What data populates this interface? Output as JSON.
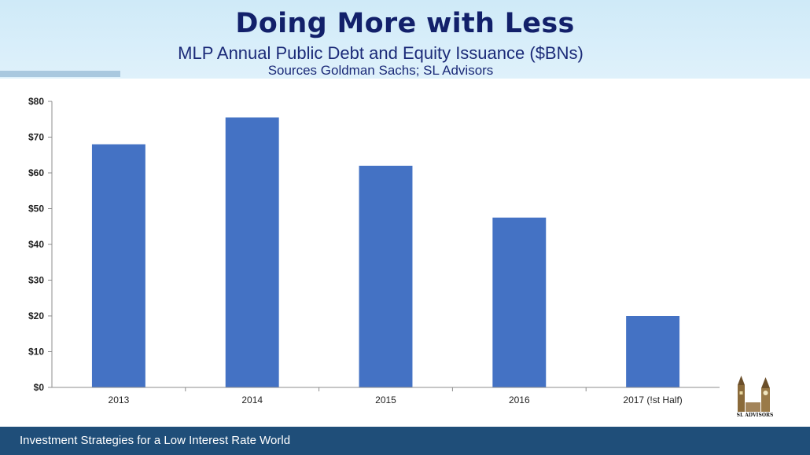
{
  "header": {
    "title": "Doing More with Less",
    "subtitle": "MLP Annual Public Debt and Equity Issuance ($BNs)",
    "sources": "Sources Goldman Sachs; SL Advisors"
  },
  "footer": {
    "text": "Investment Strategies for a Low Interest Rate World"
  },
  "logo": {
    "text": "SL ADVISORS"
  },
  "chart_data": {
    "type": "bar",
    "categories": [
      "2013",
      "2014",
      "2015",
      "2016",
      "2017 (!st Half)"
    ],
    "values": [
      68,
      75.5,
      62,
      47.5,
      20
    ],
    "ylim": [
      0,
      80
    ],
    "yticks": [
      "$0",
      "$10",
      "$20",
      "$30",
      "$40",
      "$50",
      "$60",
      "$70",
      "$80"
    ],
    "bar_color": "#4472c4",
    "grid": false,
    "legend": "none"
  }
}
